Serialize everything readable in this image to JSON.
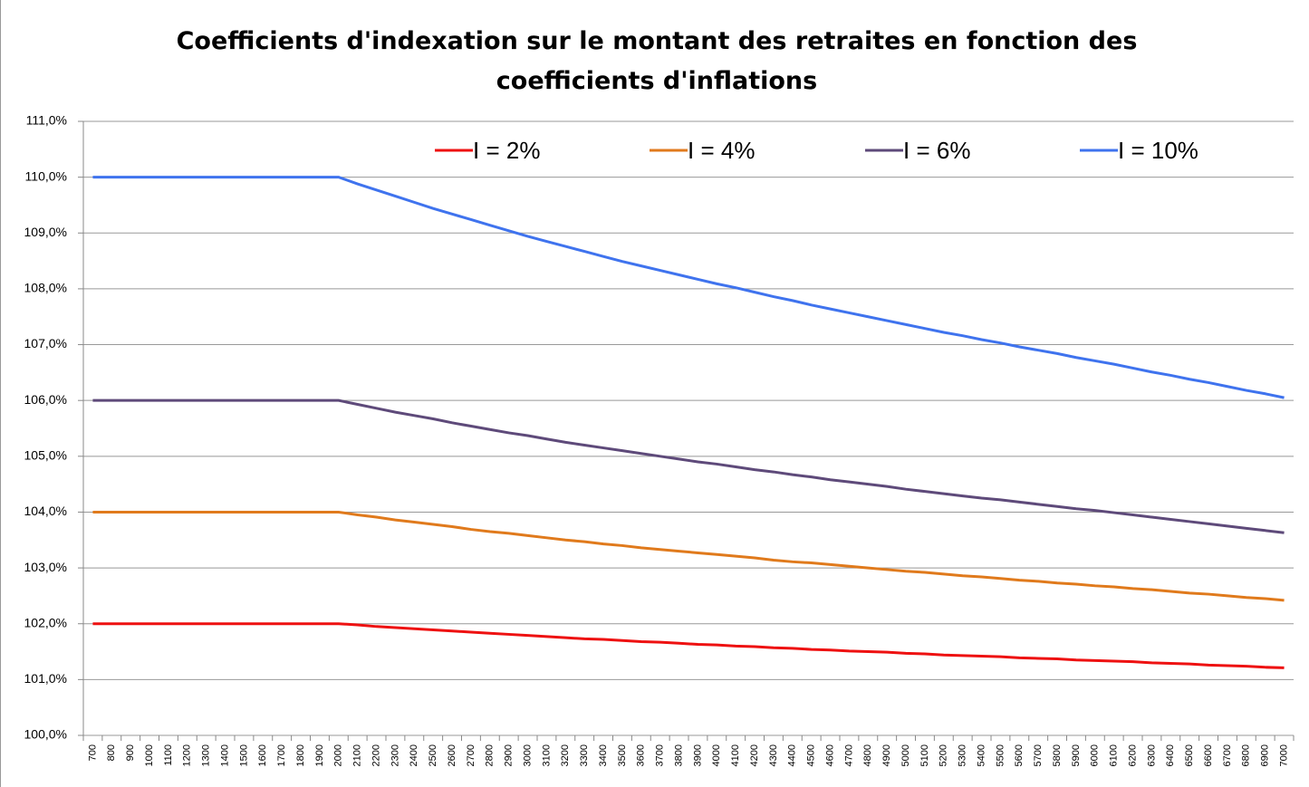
{
  "chart_data": {
    "type": "line",
    "title": "Coefficients d'indexation sur le montant des retraites en fonction des coefficients d'inflations",
    "categories": [
      "700",
      "800",
      "900",
      "1000",
      "1100",
      "1200",
      "1300",
      "1400",
      "1500",
      "1600",
      "1700",
      "1800",
      "1900",
      "2000",
      "2100",
      "2200",
      "2300",
      "2400",
      "2500",
      "2600",
      "2700",
      "2800",
      "2900",
      "3000",
      "3100",
      "3200",
      "3300",
      "3400",
      "3500",
      "3600",
      "3700",
      "3800",
      "3900",
      "4000",
      "4100",
      "4200",
      "4300",
      "4400",
      "4500",
      "4600",
      "4700",
      "4800",
      "4900",
      "5000",
      "5100",
      "5200",
      "5300",
      "5400",
      "5500",
      "5600",
      "5700",
      "5800",
      "5900",
      "6000",
      "6100",
      "6200",
      "6300",
      "6400",
      "6500",
      "6600",
      "6700",
      "6800",
      "6900",
      "7000"
    ],
    "series": [
      {
        "name": "I = 2%",
        "color": "#ee1111",
        "values": [
          102,
          102,
          102,
          102,
          102,
          102,
          102,
          102,
          102,
          102,
          102,
          102,
          102,
          102,
          101.98,
          101.95,
          101.93,
          101.91,
          101.89,
          101.87,
          101.85,
          101.83,
          101.81,
          101.79,
          101.77,
          101.75,
          101.73,
          101.72,
          101.7,
          101.68,
          101.67,
          101.65,
          101.63,
          101.62,
          101.6,
          101.59,
          101.57,
          101.56,
          101.54,
          101.53,
          101.51,
          101.5,
          101.49,
          101.47,
          101.46,
          101.44,
          101.43,
          101.42,
          101.41,
          101.39,
          101.38,
          101.37,
          101.35,
          101.34,
          101.33,
          101.32,
          101.3,
          101.29,
          101.28,
          101.26,
          101.25,
          101.24,
          101.22,
          101.21
        ]
      },
      {
        "name": "I = 4%",
        "color": "#e07a1c",
        "values": [
          104,
          104,
          104,
          104,
          104,
          104,
          104,
          104,
          104,
          104,
          104,
          104,
          104,
          104,
          103.95,
          103.91,
          103.86,
          103.82,
          103.78,
          103.74,
          103.69,
          103.65,
          103.62,
          103.58,
          103.54,
          103.5,
          103.47,
          103.43,
          103.4,
          103.36,
          103.33,
          103.3,
          103.27,
          103.24,
          103.21,
          103.18,
          103.14,
          103.11,
          103.09,
          103.06,
          103.03,
          103.0,
          102.97,
          102.94,
          102.92,
          102.89,
          102.86,
          102.84,
          102.81,
          102.78,
          102.76,
          102.73,
          102.71,
          102.68,
          102.66,
          102.63,
          102.61,
          102.58,
          102.55,
          102.53,
          102.5,
          102.47,
          102.45,
          102.42
        ]
      },
      {
        "name": "I = 6%",
        "color": "#5e4a7a",
        "values": [
          106,
          106,
          106,
          106,
          106,
          106,
          106,
          106,
          106,
          106,
          106,
          106,
          106,
          106,
          105.93,
          105.86,
          105.79,
          105.73,
          105.67,
          105.6,
          105.54,
          105.48,
          105.42,
          105.37,
          105.31,
          105.25,
          105.2,
          105.15,
          105.1,
          105.05,
          105.0,
          104.95,
          104.9,
          104.86,
          104.81,
          104.76,
          104.72,
          104.67,
          104.63,
          104.58,
          104.54,
          104.5,
          104.46,
          104.41,
          104.37,
          104.33,
          104.29,
          104.25,
          104.22,
          104.18,
          104.14,
          104.1,
          104.06,
          104.03,
          103.99,
          103.95,
          103.91,
          103.87,
          103.83,
          103.79,
          103.75,
          103.71,
          103.67,
          103.63
        ]
      },
      {
        "name": "I = 10%",
        "color": "#3f73ee",
        "values": [
          110,
          110,
          110,
          110,
          110,
          110,
          110,
          110,
          110,
          110,
          110,
          110,
          110,
          110,
          109.88,
          109.77,
          109.66,
          109.55,
          109.44,
          109.34,
          109.24,
          109.14,
          109.04,
          108.94,
          108.85,
          108.76,
          108.67,
          108.58,
          108.49,
          108.41,
          108.33,
          108.25,
          108.17,
          108.09,
          108.02,
          107.94,
          107.86,
          107.79,
          107.71,
          107.64,
          107.57,
          107.5,
          107.43,
          107.36,
          107.29,
          107.22,
          107.16,
          107.09,
          107.03,
          106.96,
          106.9,
          106.84,
          106.77,
          106.71,
          106.65,
          106.58,
          106.51,
          106.45,
          106.38,
          106.32,
          106.25,
          106.18,
          106.12,
          106.05
        ]
      }
    ],
    "ylim": [
      100,
      111
    ],
    "yticks": [
      {
        "value": 100,
        "label": "100,0%"
      },
      {
        "value": 101,
        "label": "101,0%"
      },
      {
        "value": 102,
        "label": "102,0%"
      },
      {
        "value": 103,
        "label": "103,0%"
      },
      {
        "value": 104,
        "label": "104,0%"
      },
      {
        "value": 105,
        "label": "105,0%"
      },
      {
        "value": 106,
        "label": "106,0%"
      },
      {
        "value": 107,
        "label": "107,0%"
      },
      {
        "value": 108,
        "label": "108,0%"
      },
      {
        "value": 109,
        "label": "109,0%"
      },
      {
        "value": 110,
        "label": "110,0%"
      },
      {
        "value": 111,
        "label": "111,0%"
      }
    ],
    "grid": true,
    "legend": "top"
  }
}
